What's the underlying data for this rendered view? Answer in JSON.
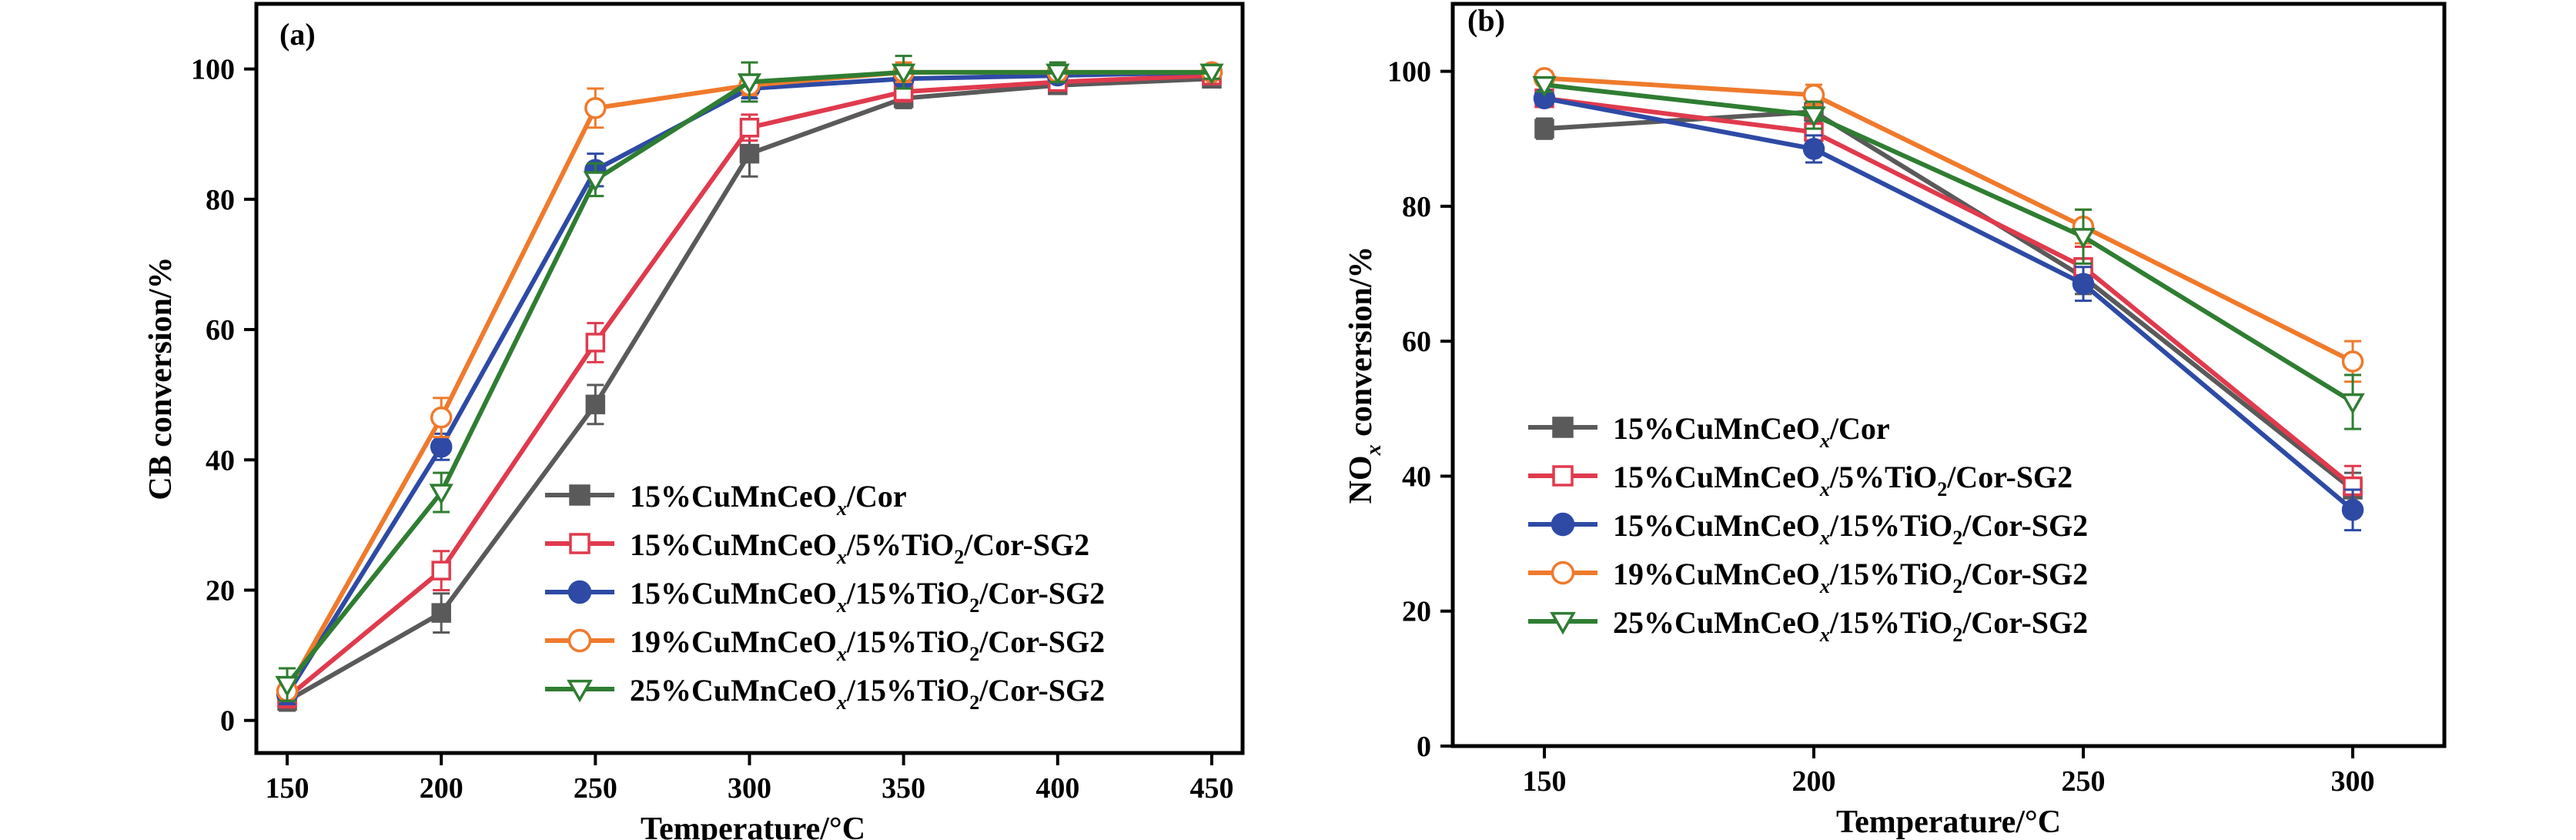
{
  "chart_data": [
    {
      "type": "line",
      "panel_label": "(a)",
      "xlabel": "Temperature/°C",
      "ylabel": "CB conversion/%",
      "x": [
        150,
        200,
        250,
        300,
        350,
        400,
        450
      ],
      "xlim": [
        140,
        460
      ],
      "ylim": [
        -5,
        110
      ],
      "xticks": [
        150,
        200,
        250,
        300,
        350,
        400,
        450
      ],
      "yticks": [
        0,
        20,
        40,
        60,
        80,
        100
      ],
      "legend_position": "bottom-right",
      "series": [
        {
          "key": "s1",
          "values": [
            3,
            16.5,
            48.5,
            87,
            95.5,
            97.5,
            98.5
          ],
          "errors": [
            1.5,
            3,
            3,
            3.5,
            1.5,
            1,
            1
          ]
        },
        {
          "key": "s2",
          "values": [
            3.5,
            23,
            58,
            91,
            96.5,
            98,
            99
          ],
          "errors": [
            1.5,
            3,
            3,
            2,
            1.5,
            1,
            1
          ]
        },
        {
          "key": "s3",
          "values": [
            4,
            42,
            84.5,
            97,
            98.5,
            99,
            99.5
          ],
          "errors": [
            1.5,
            2,
            2.5,
            1.5,
            1.5,
            1,
            1
          ]
        },
        {
          "key": "s4",
          "values": [
            4.5,
            46.5,
            94,
            97.5,
            99.5,
            99.5,
            99.5
          ],
          "errors": [
            1.5,
            3,
            3,
            1.5,
            1.5,
            1,
            1
          ]
        },
        {
          "key": "s5",
          "values": [
            5.5,
            35,
            83,
            98,
            99.5,
            99.5,
            99.5
          ],
          "errors": [
            2.5,
            3,
            2.5,
            3,
            2.5,
            1.5,
            1
          ]
        }
      ]
    },
    {
      "type": "line",
      "panel_label": "(b)",
      "xlabel": "Temperature/°C",
      "ylabel": "NO_x conversion/%",
      "x": [
        150,
        200,
        250,
        300
      ],
      "xlim": [
        133,
        317
      ],
      "ylim": [
        0,
        110
      ],
      "xticks": [
        150,
        200,
        250,
        300
      ],
      "yticks": [
        0,
        20,
        40,
        60,
        80,
        100
      ],
      "legend_position": "bottom-left",
      "series": [
        {
          "key": "s1",
          "values": [
            91.5,
            94,
            69.5,
            38
          ],
          "errors": [
            1.5,
            1.5,
            2.5,
            2.5
          ]
        },
        {
          "key": "s2",
          "values": [
            96,
            91,
            71,
            38.5
          ],
          "errors": [
            1,
            2,
            3,
            3
          ]
        },
        {
          "key": "s3",
          "values": [
            96,
            88.5,
            68.5,
            35
          ],
          "errors": [
            1,
            2,
            2.5,
            3
          ]
        },
        {
          "key": "s4",
          "values": [
            99,
            96.5,
            77,
            57
          ],
          "errors": [
            1,
            1.5,
            2.5,
            3
          ]
        },
        {
          "key": "s5",
          "values": [
            98,
            93.5,
            75.5,
            51
          ],
          "errors": [
            1,
            2,
            4,
            4
          ]
        }
      ]
    }
  ],
  "legend_entries": [
    {
      "key": "s1",
      "color": "#5a5a5a",
      "marker": "square-filled",
      "parts": [
        {
          "t": "15%CuMnCeO"
        },
        {
          "t": "x",
          "style": "sub-italic"
        },
        {
          "t": "/Cor"
        }
      ]
    },
    {
      "key": "s2",
      "color": "#e03a4d",
      "marker": "square-open",
      "parts": [
        {
          "t": "15%CuMnCeO"
        },
        {
          "t": "x",
          "style": "sub-italic"
        },
        {
          "t": "/5%TiO"
        },
        {
          "t": "2",
          "style": "sub"
        },
        {
          "t": "/Cor-SG2"
        }
      ]
    },
    {
      "key": "s3",
      "color": "#2e4aa5",
      "marker": "circle-filled",
      "parts": [
        {
          "t": "15%CuMnCeO"
        },
        {
          "t": "x",
          "style": "sub-italic"
        },
        {
          "t": "/15%TiO"
        },
        {
          "t": "2",
          "style": "sub"
        },
        {
          "t": "/Cor-SG2"
        }
      ]
    },
    {
      "key": "s4",
      "color": "#ef7a2c",
      "marker": "circle-open",
      "parts": [
        {
          "t": "19%CuMnCeO"
        },
        {
          "t": "x",
          "style": "sub-italic"
        },
        {
          "t": "/15%TiO"
        },
        {
          "t": "2",
          "style": "sub"
        },
        {
          "t": "/Cor-SG2"
        }
      ]
    },
    {
      "key": "s5",
      "color": "#2f7d32",
      "marker": "triangle-down-open",
      "parts": [
        {
          "t": "25%CuMnCeO"
        },
        {
          "t": "x",
          "style": "sub-italic"
        },
        {
          "t": "/15%TiO"
        },
        {
          "t": "2",
          "style": "sub"
        },
        {
          "t": "/Cor-SG2"
        }
      ]
    }
  ],
  "ylabel_parts": [
    [
      {
        "t": "CB conversion/%"
      }
    ],
    [
      {
        "t": "NO"
      },
      {
        "t": "x",
        "style": "sub-italic"
      },
      {
        "t": " conversion/%"
      }
    ]
  ]
}
